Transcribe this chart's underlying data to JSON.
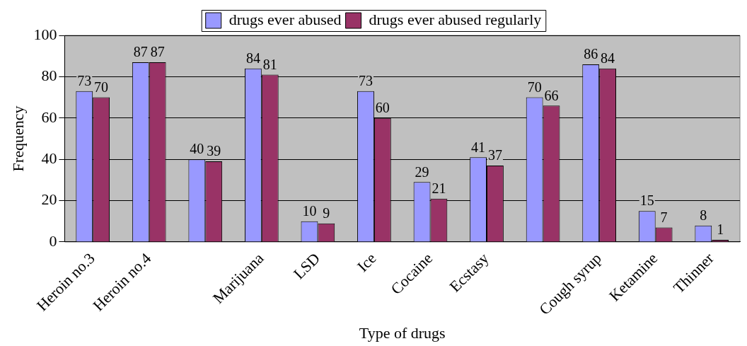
{
  "chart_data": {
    "type": "bar",
    "xlabel": "Type of drugs",
    "ylabel": "Frequency",
    "categories": [
      "Heroin no.3",
      "Heroin no.4",
      null,
      "Marijuana",
      "LSD",
      "Ice",
      "Cocaine",
      "Ecstasy",
      null,
      "Cough syrup",
      "Ketamine",
      "Thinner"
    ],
    "series": [
      {
        "name": "drugs ever abused",
        "color": "#9999ff",
        "values": [
          73,
          87,
          40,
          84,
          10,
          73,
          29,
          41,
          70,
          86,
          15,
          8
        ]
      },
      {
        "name": "drugs ever abused regularly",
        "color": "#993366",
        "values": [
          70,
          87,
          39,
          81,
          9,
          60,
          21,
          37,
          66,
          84,
          7,
          1
        ]
      }
    ],
    "ylim": [
      0,
      100
    ],
    "yticks": [
      0,
      20,
      40,
      60,
      80,
      100
    ],
    "grid": "y",
    "legend": "top",
    "data_labels": true
  }
}
